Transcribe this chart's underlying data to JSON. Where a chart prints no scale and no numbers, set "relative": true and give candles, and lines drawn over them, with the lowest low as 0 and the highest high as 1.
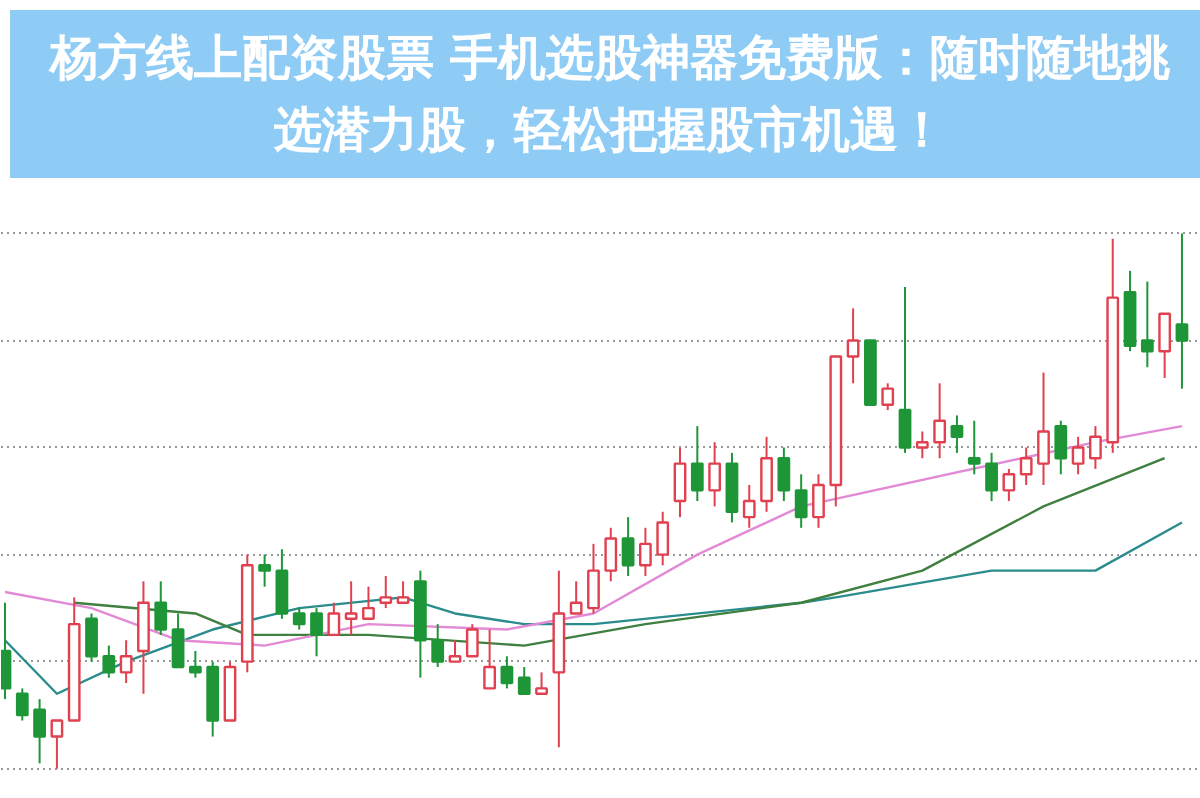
{
  "chart_data": {
    "type": "candlestick",
    "title": "杨方线上配资股票 手机选股神器免费版：随时随地挑选潜力股，轻松把握股市机遇！",
    "relative": true,
    "categories": [
      null,
      null,
      null,
      null,
      null,
      null,
      null,
      null,
      null,
      null,
      null,
      null,
      null,
      null,
      null,
      null,
      null,
      null,
      null,
      null,
      null,
      null,
      null,
      null,
      null,
      null,
      null,
      null,
      null,
      null,
      null,
      null,
      null,
      null,
      null,
      null,
      null,
      null,
      null,
      null,
      null,
      null,
      null,
      null,
      null,
      null,
      null,
      null,
      null,
      null,
      null,
      null,
      null,
      null,
      null,
      null,
      null,
      null,
      null,
      null,
      null,
      null,
      null,
      null,
      null,
      null,
      null,
      null,
      null
    ],
    "ohlc": [
      [
        0.22,
        0.31,
        0.13,
        0.15
      ],
      [
        0.14,
        0.15,
        0.09,
        0.1
      ],
      [
        0.11,
        0.13,
        0.01,
        0.06
      ],
      [
        0.06,
        0.09,
        0.0,
        0.09
      ],
      [
        0.09,
        0.32,
        0.09,
        0.27
      ],
      [
        0.28,
        0.29,
        0.2,
        0.21
      ],
      [
        0.21,
        0.23,
        0.17,
        0.18
      ],
      [
        0.18,
        0.24,
        0.16,
        0.21
      ],
      [
        0.22,
        0.35,
        0.14,
        0.31
      ],
      [
        0.31,
        0.35,
        0.25,
        0.26
      ],
      [
        0.26,
        0.29,
        0.19,
        0.19
      ],
      [
        0.19,
        0.22,
        0.17,
        0.18
      ],
      [
        0.19,
        0.2,
        0.06,
        0.09
      ],
      [
        0.09,
        0.2,
        0.09,
        0.19
      ],
      [
        0.2,
        0.4,
        0.18,
        0.38
      ],
      [
        0.38,
        0.4,
        0.34,
        0.37
      ],
      [
        0.37,
        0.41,
        0.28,
        0.29
      ],
      [
        0.29,
        0.3,
        0.26,
        0.27
      ],
      [
        0.29,
        0.3,
        0.21,
        0.25
      ],
      [
        0.25,
        0.31,
        0.25,
        0.29
      ],
      [
        0.28,
        0.35,
        0.25,
        0.29
      ],
      [
        0.28,
        0.34,
        0.28,
        0.3
      ],
      [
        0.31,
        0.36,
        0.3,
        0.32
      ],
      [
        0.31,
        0.35,
        0.31,
        0.32
      ],
      [
        0.35,
        0.37,
        0.17,
        0.24
      ],
      [
        0.24,
        0.27,
        0.19,
        0.2
      ],
      [
        0.2,
        0.24,
        0.2,
        0.21
      ],
      [
        0.21,
        0.27,
        0.21,
        0.26
      ],
      [
        0.15,
        0.26,
        0.15,
        0.19
      ],
      [
        0.19,
        0.21,
        0.15,
        0.16
      ],
      [
        0.17,
        0.19,
        0.14,
        0.14
      ],
      [
        0.14,
        0.18,
        0.14,
        0.15
      ],
      [
        0.18,
        0.37,
        0.04,
        0.29
      ],
      [
        0.29,
        0.35,
        0.29,
        0.31
      ],
      [
        0.3,
        0.42,
        0.29,
        0.37
      ],
      [
        0.37,
        0.45,
        0.35,
        0.43
      ],
      [
        0.43,
        0.47,
        0.36,
        0.38
      ],
      [
        0.38,
        0.45,
        0.36,
        0.42
      ],
      [
        0.4,
        0.48,
        0.38,
        0.46
      ],
      [
        0.5,
        0.6,
        0.47,
        0.57
      ],
      [
        0.57,
        0.64,
        0.5,
        0.52
      ],
      [
        0.52,
        0.61,
        0.49,
        0.57
      ],
      [
        0.57,
        0.59,
        0.46,
        0.48
      ],
      [
        0.47,
        0.53,
        0.45,
        0.5
      ],
      [
        0.5,
        0.62,
        0.48,
        0.58
      ],
      [
        0.58,
        0.6,
        0.5,
        0.52
      ],
      [
        0.52,
        0.55,
        0.45,
        0.47
      ],
      [
        0.47,
        0.55,
        0.45,
        0.53
      ],
      [
        0.53,
        0.77,
        0.49,
        0.77
      ],
      [
        0.77,
        0.86,
        0.72,
        0.8
      ],
      [
        0.8,
        0.8,
        0.68,
        0.68
      ],
      [
        0.68,
        0.72,
        0.67,
        0.71
      ],
      [
        0.67,
        0.9,
        0.59,
        0.6
      ],
      [
        0.6,
        0.63,
        0.58,
        0.61
      ],
      [
        0.61,
        0.72,
        0.58,
        0.65
      ],
      [
        0.64,
        0.66,
        0.59,
        0.62
      ],
      [
        0.58,
        0.65,
        0.55,
        0.57
      ],
      [
        0.57,
        0.59,
        0.5,
        0.52
      ],
      [
        0.52,
        0.56,
        0.5,
        0.55
      ],
      [
        0.55,
        0.6,
        0.53,
        0.58
      ],
      [
        0.57,
        0.74,
        0.53,
        0.63
      ],
      [
        0.64,
        0.65,
        0.55,
        0.58
      ],
      [
        0.57,
        0.62,
        0.55,
        0.6
      ],
      [
        0.58,
        0.64,
        0.56,
        0.62
      ],
      [
        0.61,
        0.99,
        0.59,
        0.88
      ],
      [
        0.89,
        0.93,
        0.78,
        0.79
      ],
      [
        0.8,
        0.91,
        0.75,
        0.78
      ],
      [
        0.78,
        0.85,
        0.73,
        0.85
      ],
      [
        0.83,
        1.0,
        0.71,
        0.8
      ]
    ],
    "colors": [
      "#1e9638",
      "#1e9638",
      "#1e9638",
      "#e0404f",
      "#e0404f",
      "#1e9638",
      "#1e9638",
      "#e0404f",
      "#e0404f",
      "#1e9638",
      "#1e9638",
      "#1e9638",
      "#1e9638",
      "#e0404f",
      "#e0404f",
      "#1e9638",
      "#1e9638",
      "#1e9638",
      "#1e9638",
      "#e0404f",
      "#e0404f",
      "#e0404f",
      "#e0404f",
      "#e0404f",
      "#1e9638",
      "#1e9638",
      "#e0404f",
      "#e0404f",
      "#e0404f",
      "#1e9638",
      "#1e9638",
      "#e0404f",
      "#e0404f",
      "#e0404f",
      "#e0404f",
      "#e0404f",
      "#1e9638",
      "#e0404f",
      "#e0404f",
      "#e0404f",
      "#1e9638",
      "#e0404f",
      "#1e9638",
      "#e0404f",
      "#e0404f",
      "#1e9638",
      "#1e9638",
      "#e0404f",
      "#e0404f",
      "#e0404f",
      "#1e9638",
      "#e0404f",
      "#1e9638",
      "#e0404f",
      "#e0404f",
      "#1e9638",
      "#1e9638",
      "#1e9638",
      "#e0404f",
      "#e0404f",
      "#e0404f",
      "#1e9638",
      "#e0404f",
      "#e0404f",
      "#e0404f",
      "#1e9638",
      "#1e9638",
      "#e0404f",
      "#1e9638"
    ],
    "series": [
      {
        "type": "line",
        "color": "#2a8c8c",
        "values": [
          0.24,
          null,
          null,
          0.14,
          null,
          null,
          null,
          0.2,
          null,
          null,
          null,
          null,
          0.26,
          null,
          null,
          null,
          null,
          0.3,
          null,
          null,
          null,
          null,
          null,
          0.32,
          null,
          null,
          0.29,
          null,
          null,
          null,
          0.27,
          null,
          null,
          null,
          0.27,
          null,
          null,
          null,
          null,
          null,
          null,
          null,
          null,
          null,
          null,
          null,
          0.31,
          null,
          0.32,
          null,
          null,
          null,
          null,
          null,
          null,
          null,
          null,
          0.37,
          null,
          null,
          null,
          null,
          null,
          0.37,
          null,
          null,
          null,
          null,
          0.46
        ]
      },
      {
        "type": "line",
        "color": "#3f7f3f",
        "values": [
          null,
          null,
          null,
          null,
          0.31,
          null,
          null,
          null,
          null,
          null,
          null,
          0.29,
          null,
          null,
          0.25,
          null,
          null,
          null,
          null,
          null,
          null,
          0.25,
          null,
          null,
          null,
          null,
          null,
          null,
          null,
          null,
          0.23,
          null,
          null,
          null,
          null,
          null,
          null,
          0.27,
          null,
          null,
          null,
          null,
          null,
          null,
          null,
          null,
          0.31,
          null,
          null,
          null,
          null,
          null,
          null,
          0.37,
          null,
          null,
          null,
          null,
          null,
          null,
          0.49,
          null,
          null,
          null,
          null,
          null,
          null,
          0.58,
          null
        ]
      },
      {
        "type": "line",
        "color": "#e28ad6",
        "values": [
          0.33,
          null,
          null,
          null,
          null,
          0.3,
          null,
          null,
          null,
          null,
          0.24,
          null,
          null,
          null,
          null,
          0.23,
          null,
          null,
          null,
          null,
          null,
          0.27,
          null,
          null,
          null,
          null,
          null,
          null,
          null,
          0.26,
          null,
          null,
          null,
          null,
          0.29,
          null,
          null,
          null,
          null,
          null,
          0.4,
          null,
          null,
          null,
          null,
          null,
          0.49,
          null,
          null,
          null,
          null,
          null,
          null,
          null,
          null,
          null,
          null,
          null,
          null,
          null,
          null,
          null,
          null,
          0.61,
          null,
          null,
          null,
          null,
          0.64
        ]
      }
    ],
    "grid": "y"
  }
}
